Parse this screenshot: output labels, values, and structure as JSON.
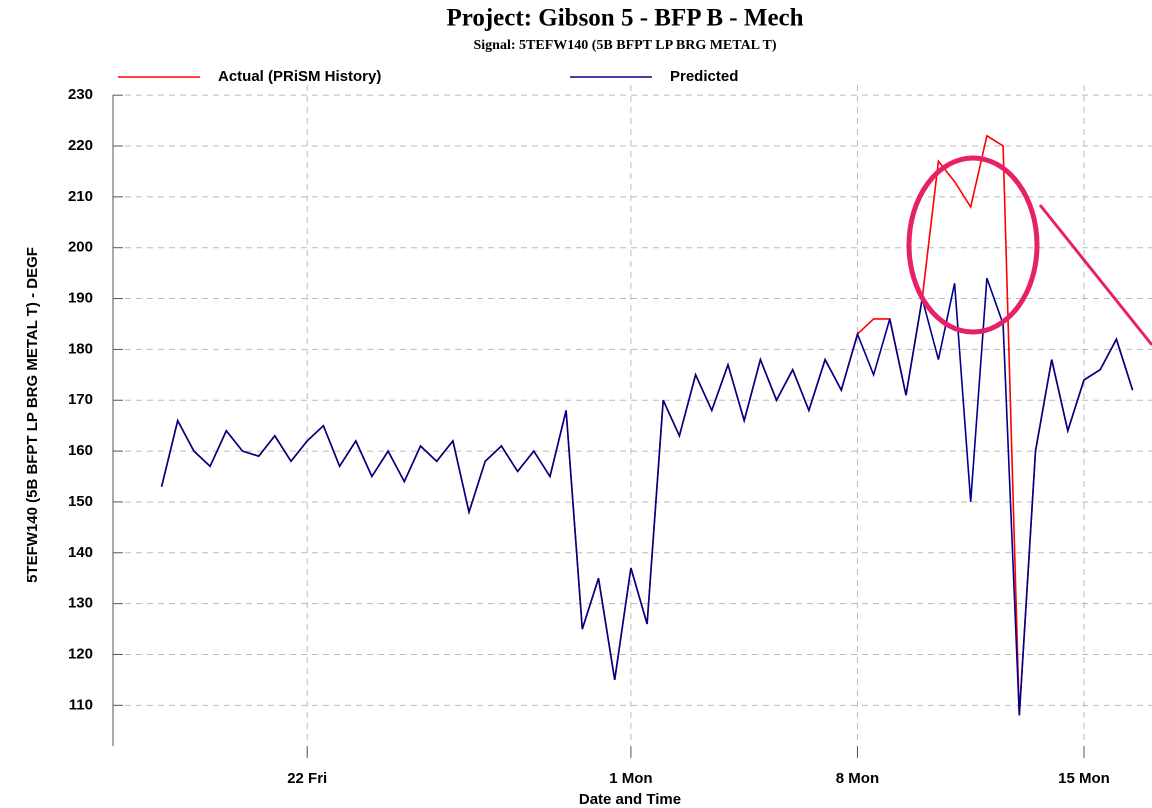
{
  "chart_data": {
    "type": "line",
    "title": "Project: Gibson 5 - BFP B - Mech",
    "subtitle": "Signal: 5TEFW140 (5B BFPT LP BRG METAL T)",
    "xlabel": "Date and Time",
    "ylabel": "5TEFW140 (5B BFPT LP BRG METAL T) - DEGF",
    "x": [
      17.5,
      18,
      18.5,
      19,
      19.5,
      20,
      20.5,
      21,
      21.5,
      22,
      22.5,
      23,
      23.5,
      24,
      24.5,
      25,
      25.5,
      26,
      26.5,
      27,
      27.5,
      28,
      28.5,
      29,
      29.5,
      30,
      30.5,
      31,
      31.5,
      32,
      32.5,
      33,
      33.5,
      34,
      34.5,
      35,
      35.5,
      36,
      36.5,
      37,
      37.5,
      38,
      38.5,
      39,
      39.5,
      40,
      40.5,
      41,
      41.5,
      42,
      42.5,
      43,
      43.5,
      44,
      44.5,
      45,
      45.5,
      46,
      46.5,
      47,
      47.5
    ],
    "series": [
      {
        "name": "Actual (PRiSM History)",
        "color": "#ff0000",
        "values": [
          153,
          166,
          160,
          157,
          164,
          160,
          159,
          163,
          158,
          162,
          165,
          157,
          162,
          155,
          160,
          154,
          161,
          158,
          162,
          148,
          158,
          161,
          156,
          160,
          155,
          168,
          125,
          135,
          115,
          137,
          126,
          170,
          163,
          175,
          168,
          177,
          166,
          178,
          170,
          176,
          168,
          178,
          172,
          183,
          186,
          186,
          171,
          190,
          217,
          213,
          208,
          222,
          220,
          108,
          160,
          178,
          164,
          174,
          176,
          182,
          172
        ]
      },
      {
        "name": "Predicted",
        "color": "#00008b",
        "values": [
          153,
          166,
          160,
          157,
          164,
          160,
          159,
          163,
          158,
          162,
          165,
          157,
          162,
          155,
          160,
          154,
          161,
          158,
          162,
          148,
          158,
          161,
          156,
          160,
          155,
          168,
          125,
          135,
          115,
          137,
          126,
          170,
          163,
          175,
          168,
          177,
          166,
          178,
          170,
          176,
          168,
          178,
          172,
          183,
          175,
          186,
          171,
          190,
          178,
          193,
          150,
          194,
          185,
          108,
          160,
          178,
          164,
          174,
          176,
          182,
          172
        ]
      }
    ],
    "xlim": [
      16,
      48.1
    ],
    "xticks": [
      {
        "value": 22,
        "label": "22 Fri"
      },
      {
        "value": 32,
        "label": "1 Mon"
      },
      {
        "value": 39,
        "label": "8 Mon"
      },
      {
        "value": 46,
        "label": "15 Mon"
      }
    ],
    "ylim": [
      102,
      232
    ],
    "yticks": [
      110,
      120,
      130,
      140,
      150,
      160,
      170,
      180,
      190,
      200,
      210,
      220,
      230
    ],
    "grid": true,
    "legend": "top"
  }
}
